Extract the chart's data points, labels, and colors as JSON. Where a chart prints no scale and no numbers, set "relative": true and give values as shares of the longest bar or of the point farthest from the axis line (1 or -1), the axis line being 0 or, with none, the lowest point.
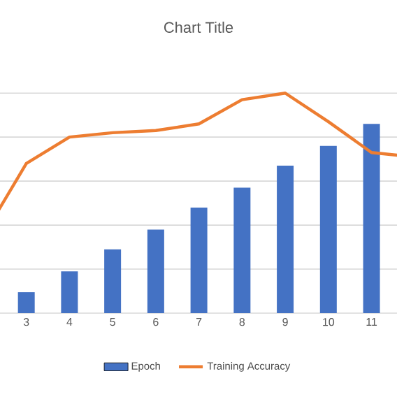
{
  "chart_data": {
    "type": "bar",
    "title": "Chart Title",
    "relative": true,
    "grid": "y",
    "legend": "bottom",
    "categories": [
      null,
      "3",
      "4",
      "5",
      "6",
      "7",
      "8",
      "9",
      "10",
      "11",
      null
    ],
    "series": [
      {
        "name": "Epoch",
        "color": "#4472c4",
        "values": [
          null,
          0.095,
          0.19,
          0.29,
          0.38,
          0.48,
          0.57,
          0.67,
          0.76,
          0.86,
          null
        ]
      },
      {
        "name": "Training Accuracy",
        "type": "line",
        "color": "#ed7d31",
        "values": [
          0.35,
          0.68,
          0.8,
          0.82,
          0.83,
          0.86,
          0.97,
          1.0,
          0.87,
          0.73,
          0.71
        ]
      }
    ]
  }
}
